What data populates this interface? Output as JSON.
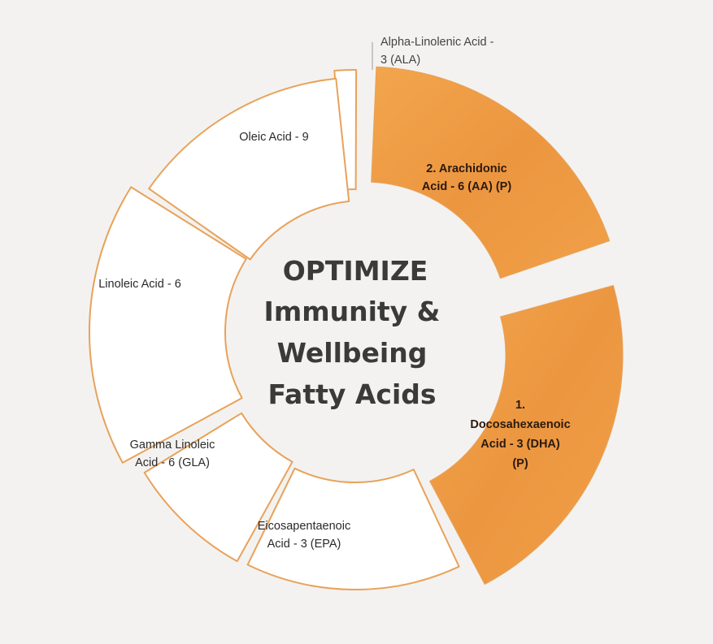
{
  "center": {
    "line1": "OPTIMIZE",
    "line2": "Immunity &",
    "line3": "Wellbeing",
    "line4": "Fatty Acids"
  },
  "segments": [
    {
      "id": "ala",
      "label": "Alpha-Linolenic Acid - 3 (ALA)",
      "highlight": false
    },
    {
      "id": "aa",
      "label": "2. Arachidonic Acid - 6 (AA) (P)",
      "highlight": true
    },
    {
      "id": "dha",
      "label": "1. Docosahexaenoic Acid - 3 (DHA) (P)",
      "highlight": true
    },
    {
      "id": "epa",
      "label": "Eicosapentaenoic Acid - 3 (EPA)",
      "highlight": false
    },
    {
      "id": "gla",
      "label": "Gamma Linoleic Acid - 6 (GLA)",
      "highlight": false
    },
    {
      "id": "la",
      "label": "Linoleic Acid - 6",
      "highlight": false
    },
    {
      "id": "oleic",
      "label": "Oleic Acid - 9",
      "highlight": false
    }
  ],
  "labels": {
    "ala_l1": "Alpha-Linolenic Acid -",
    "ala_l2": "3 (ALA)",
    "aa_l1": "2. Arachidonic",
    "aa_l2": "Acid - 6 (AA) (P)",
    "dha_l1": "1.",
    "dha_l2": "Docosahexaenoic",
    "dha_l3": "Acid - 3 (DHA)",
    "dha_l4": "(P)",
    "epa_l1": "Eicosapentaenoic",
    "epa_l2": "Acid - 3 (EPA)",
    "gla_l1": "Gamma Linoleic",
    "gla_l2": "Acid - 6 (GLA)",
    "la_l1": "Linoleic Acid - 6",
    "oleic_l1": "Oleic Acid - 9"
  },
  "colors": {
    "background": "#f3f2f0",
    "segment_fill": "#ffffff",
    "segment_stroke": "#e8a25a",
    "highlight_fill": "#ef9f44",
    "highlight_dark": "#e9893a",
    "center_text": "#3a3a3a"
  }
}
